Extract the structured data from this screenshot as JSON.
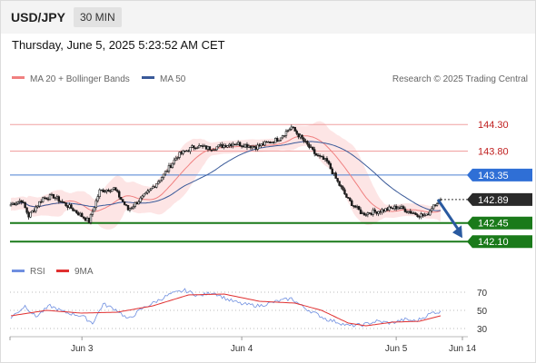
{
  "header": {
    "symbol": "USD/JPY",
    "timeframe": "30 MIN"
  },
  "timestamp": "Thursday, June 5, 2025 5:23:52 AM CET",
  "credit": "Research © 2025 Trading Central",
  "colors": {
    "ma20": "#f08080",
    "bollinger_fill": "#fde0e0",
    "ma50": "#3a5a99",
    "resistance": "#f0a0a0",
    "pivot": "#4a7fd0",
    "support": "#1a7a1a",
    "candle_up": "#1a1a1a",
    "candle_down": "#1a1a1a",
    "forecast_arrow": "#2a5aa0",
    "rsi": "#6f8fe0",
    "rsi_ma": "#e03030"
  },
  "chart_data": [
    {
      "type": "candlestick",
      "legend": [
        {
          "name": "MA 20 + Bollinger Bands",
          "color": "#f08080"
        },
        {
          "name": "MA 50",
          "color": "#3a5a99"
        }
      ],
      "x_ticks": [
        "Jun 3",
        "Jun 4",
        "Jun 5",
        "Jun 14"
      ],
      "levels": [
        {
          "value": 144.3,
          "label": "144.30",
          "kind": "resistance"
        },
        {
          "value": 143.8,
          "label": "143.80",
          "kind": "resistance"
        },
        {
          "value": 143.35,
          "label": "143.35",
          "kind": "pivot"
        },
        {
          "value": 142.89,
          "label": "142.89",
          "kind": "last"
        },
        {
          "value": 142.45,
          "label": "142.45",
          "kind": "support"
        },
        {
          "value": 142.1,
          "label": "142.10",
          "kind": "support"
        }
      ],
      "close_anchors": [
        [
          0,
          142.8
        ],
        [
          6,
          142.88
        ],
        [
          10,
          142.58
        ],
        [
          18,
          142.92
        ],
        [
          24,
          142.95
        ],
        [
          36,
          142.68
        ],
        [
          44,
          142.48
        ],
        [
          50,
          143.05
        ],
        [
          58,
          143.1
        ],
        [
          66,
          142.7
        ],
        [
          76,
          142.98
        ],
        [
          86,
          143.35
        ],
        [
          94,
          143.72
        ],
        [
          104,
          143.9
        ],
        [
          112,
          143.85
        ],
        [
          126,
          143.95
        ],
        [
          138,
          143.88
        ],
        [
          150,
          144.02
        ],
        [
          158,
          144.25
        ],
        [
          166,
          143.95
        ],
        [
          172,
          143.72
        ],
        [
          178,
          143.6
        ],
        [
          184,
          143.22
        ],
        [
          190,
          142.88
        ],
        [
          198,
          142.62
        ],
        [
          208,
          142.68
        ],
        [
          218,
          142.75
        ],
        [
          228,
          142.62
        ],
        [
          234,
          142.58
        ],
        [
          238,
          142.8
        ],
        [
          242,
          142.89
        ]
      ],
      "ylim": [
        141.95,
        144.85
      ],
      "forecast": {
        "from": 142.89,
        "to": 142.1
      }
    },
    {
      "type": "line",
      "legend": [
        {
          "name": "RSI",
          "color": "#6f8fe0"
        },
        {
          "name": "9MA",
          "color": "#e03030"
        }
      ],
      "y_ticks": [
        70,
        50,
        30
      ],
      "ylim": [
        20,
        80
      ],
      "series": [
        {
          "name": "RSI",
          "anchors": [
            [
              0,
              42
            ],
            [
              8,
              55
            ],
            [
              14,
              43
            ],
            [
              22,
              55
            ],
            [
              30,
              48
            ],
            [
              40,
              44
            ],
            [
              46,
              36
            ],
            [
              52,
              57
            ],
            [
              60,
              50
            ],
            [
              66,
              40
            ],
            [
              74,
              52
            ],
            [
              82,
              60
            ],
            [
              90,
              68
            ],
            [
              98,
              72
            ],
            [
              106,
              66
            ],
            [
              114,
              70
            ],
            [
              122,
              62
            ],
            [
              130,
              57
            ],
            [
              140,
              55
            ],
            [
              150,
              60
            ],
            [
              158,
              63
            ],
            [
              166,
              52
            ],
            [
              172,
              46
            ],
            [
              178,
              40
            ],
            [
              184,
              37
            ],
            [
              190,
              33
            ],
            [
              198,
              34
            ],
            [
              206,
              38
            ],
            [
              214,
              36
            ],
            [
              222,
              40
            ],
            [
              228,
              38
            ],
            [
              232,
              42
            ],
            [
              238,
              48
            ],
            [
              242,
              48
            ]
          ]
        },
        {
          "name": "9MA",
          "anchors": [
            [
              0,
              44
            ],
            [
              20,
              50
            ],
            [
              40,
              47
            ],
            [
              60,
              48
            ],
            [
              80,
              55
            ],
            [
              100,
              67
            ],
            [
              120,
              68
            ],
            [
              140,
              60
            ],
            [
              160,
              58
            ],
            [
              175,
              50
            ],
            [
              190,
              36
            ],
            [
              200,
              33
            ],
            [
              215,
              37
            ],
            [
              230,
              38
            ],
            [
              242,
              44
            ]
          ]
        }
      ]
    }
  ]
}
